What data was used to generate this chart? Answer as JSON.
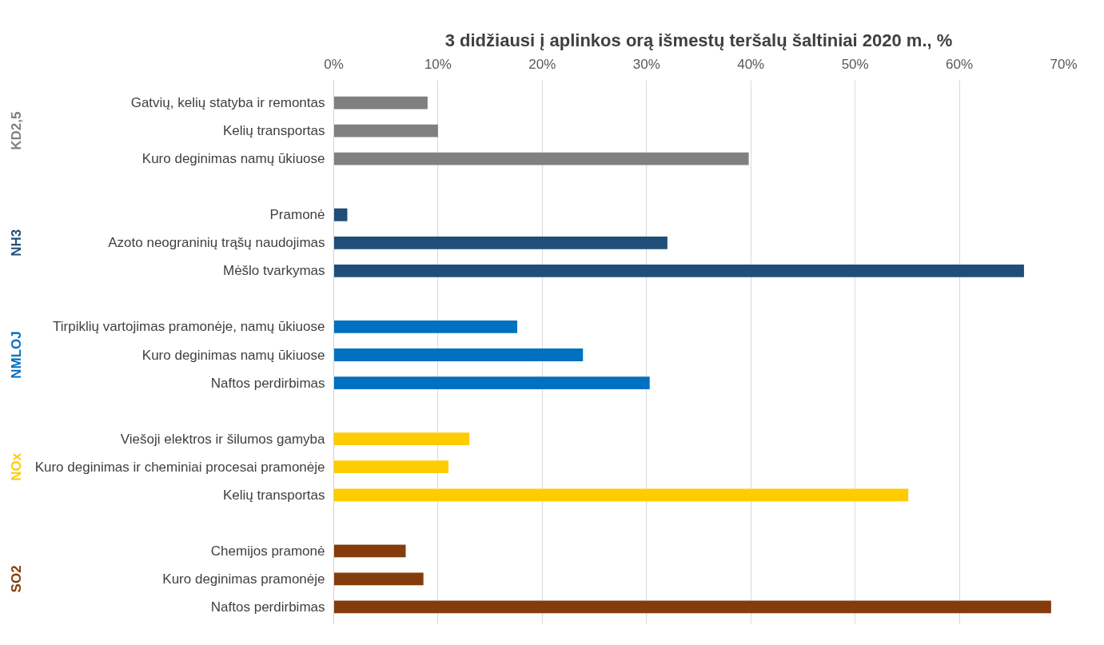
{
  "chart_data": {
    "type": "bar",
    "orientation": "horizontal",
    "title": "3 didžiausi į aplinkos orą išmestų teršalų šaltiniai 2020 m., %",
    "categories": [
      "Gatvių, kelių statyba ir remontas",
      "Kelių transportas",
      "Kuro deginimas namų ūkiuose",
      "Pramonė",
      "Azoto neograninių trąšų naudojimas",
      "Mėšlo tvarkymas",
      "Tirpiklių vartojimas pramonėje, namų ūkiuose",
      "Kuro deginimas namų ūkiuose",
      "Naftos perdirbimas",
      "Viešoji elektros ir šilumos gamyba",
      "Kuro deginimas ir cheminiai procesai pramonėje",
      "Kelių transportas",
      "Chemijos pramonė",
      "Kuro deginimas pramonėje",
      "Naftos perdirbimas"
    ],
    "series": [
      {
        "name": "KD2,5",
        "color": "#808080",
        "values": [
          9.0,
          10.0,
          39.8,
          null,
          null,
          null,
          null,
          null,
          null,
          null,
          null,
          null,
          null,
          null,
          null
        ]
      },
      {
        "name": "NH3",
        "color": "#1f4e79",
        "values": [
          null,
          null,
          null,
          1.3,
          32.0,
          66.2,
          null,
          null,
          null,
          null,
          null,
          null,
          null,
          null,
          null
        ]
      },
      {
        "name": "NMLOJ",
        "color": "#0070c0",
        "values": [
          null,
          null,
          null,
          null,
          null,
          null,
          17.6,
          23.9,
          30.3,
          null,
          null,
          null,
          null,
          null,
          null
        ]
      },
      {
        "name": "NOx",
        "color": "#ffcc00",
        "values": [
          null,
          null,
          null,
          null,
          null,
          null,
          null,
          null,
          null,
          13.0,
          11.0,
          55.1,
          null,
          null,
          null
        ]
      },
      {
        "name": "SO2",
        "color": "#843c0c",
        "values": [
          null,
          null,
          null,
          null,
          null,
          null,
          null,
          null,
          null,
          null,
          null,
          null,
          6.9,
          8.6,
          68.8
        ]
      }
    ],
    "xlim": [
      0,
      70
    ],
    "xticks": [
      {
        "value": 0,
        "label": "0%"
      },
      {
        "value": 10,
        "label": "10%"
      },
      {
        "value": 20,
        "label": "20%"
      },
      {
        "value": 30,
        "label": "30%"
      },
      {
        "value": 40,
        "label": "40%"
      },
      {
        "value": 50,
        "label": "50%"
      },
      {
        "value": 60,
        "label": "60%"
      },
      {
        "value": 70,
        "label": "70%"
      }
    ],
    "grid": "x"
  }
}
